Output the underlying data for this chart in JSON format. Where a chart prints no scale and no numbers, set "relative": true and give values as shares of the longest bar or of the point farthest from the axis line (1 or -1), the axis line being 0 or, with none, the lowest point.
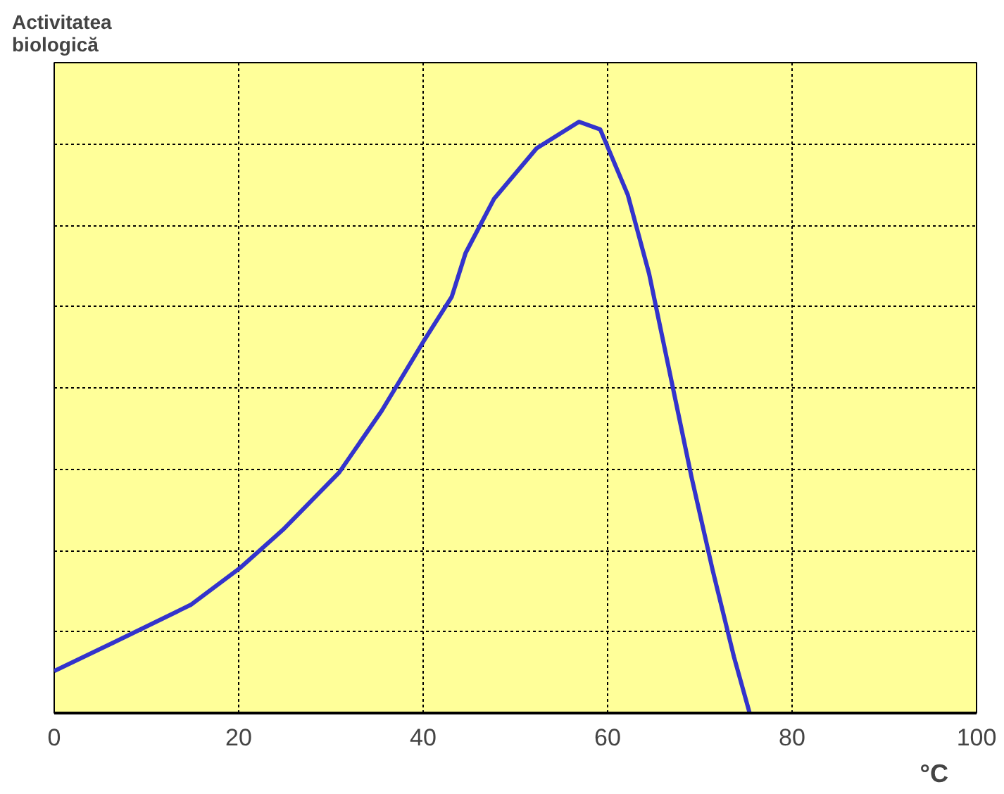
{
  "chart_data": {
    "type": "line",
    "ylabel": "Activitatea biologică",
    "xlabel": "°C",
    "relative": true,
    "x": [
      0,
      6.4,
      14.8,
      20.2,
      24.8,
      30.9,
      35.5,
      40.1,
      43.1,
      44.6,
      47.7,
      52.3,
      56.9,
      59.2,
      62.2,
      64.5,
      66.8,
      69.1,
      71.4,
      73.7,
      75.4
    ],
    "series": [
      {
        "color": "#3333cc",
        "values": [
          0.071,
          0.119,
          0.183,
          0.246,
          0.31,
          0.407,
          0.511,
          0.63,
          0.704,
          0.778,
          0.87,
          0.955,
          1,
          0.987,
          0.876,
          0.743,
          0.571,
          0.399,
          0.241,
          0.095,
          0
        ]
      }
    ],
    "xlim": [
      0,
      100
    ],
    "xticks": [
      0,
      20,
      40,
      60,
      80,
      100
    ],
    "grid": true,
    "line_style": "solid",
    "marker": "none"
  }
}
